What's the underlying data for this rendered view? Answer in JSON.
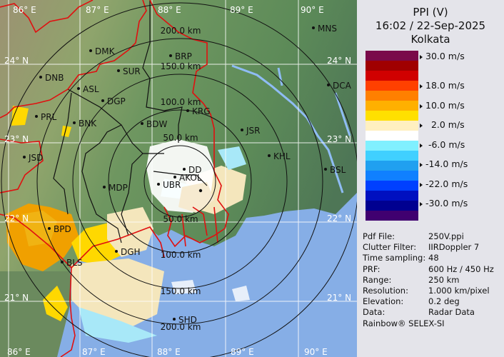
{
  "header": {
    "title": "PPI (V)",
    "datetime": "16:02 / 22-Sep-2025",
    "site": "Kolkata"
  },
  "legend": {
    "unit": "m/s",
    "colors": [
      "#7a0a4a",
      "#a00000",
      "#d00000",
      "#ff4000",
      "#ff8000",
      "#ffb000",
      "#ffe000",
      "#fff0c0",
      "#ffffff",
      "#80f0ff",
      "#40d0ff",
      "#20a0f0",
      "#1080ff",
      "#0040ff",
      "#0010c0",
      "#000090",
      "#400070"
    ],
    "ticks": [
      "30.0 m/s",
      "18.0 m/s",
      "10.0 m/s",
      "  2.0 m/s",
      " -6.0 m/s",
      "-14.0 m/s",
      "-22.0 m/s",
      "-30.0 m/s"
    ]
  },
  "info": [
    {
      "key": "Pdf File:",
      "value": "250V.ppi"
    },
    {
      "key": "Clutter Filter:",
      "value": "IIRDoppler 7"
    },
    {
      "key": "Time sampling:",
      "value": "48"
    },
    {
      "key": "PRF:",
      "value": "600 Hz / 450 Hz"
    },
    {
      "key": "Range:",
      "value": "250 km"
    },
    {
      "key": "Resolution:",
      "value": "1.000 km/pixel"
    },
    {
      "key": "Elevation:",
      "value": "0.2 deg"
    },
    {
      "key": "Data:",
      "value": "Radar Data"
    }
  ],
  "brand": "Rainbow® SELEX-SI",
  "map": {
    "lon_labels": [
      "86° E",
      "87° E",
      "88° E",
      "89° E",
      "90° E"
    ],
    "lat_labels": [
      "24° N",
      "23° N",
      "22° N",
      "21° N"
    ],
    "range_labels": [
      "50.0 km",
      "100.0 km",
      "150.0 km",
      "200.0 km"
    ],
    "cities": [
      "DMK",
      "BRP",
      "SUR",
      "DNB",
      "ASL",
      "DGP",
      "PRL",
      "BNK",
      "KRG",
      "BDW",
      "JSR",
      "MNS",
      "DCA",
      "KHL",
      "BSL",
      "JSD",
      "MDP",
      "DD",
      "AKOL",
      "UBR",
      "BPD",
      "BLS",
      "DGH",
      "SHD"
    ]
  }
}
